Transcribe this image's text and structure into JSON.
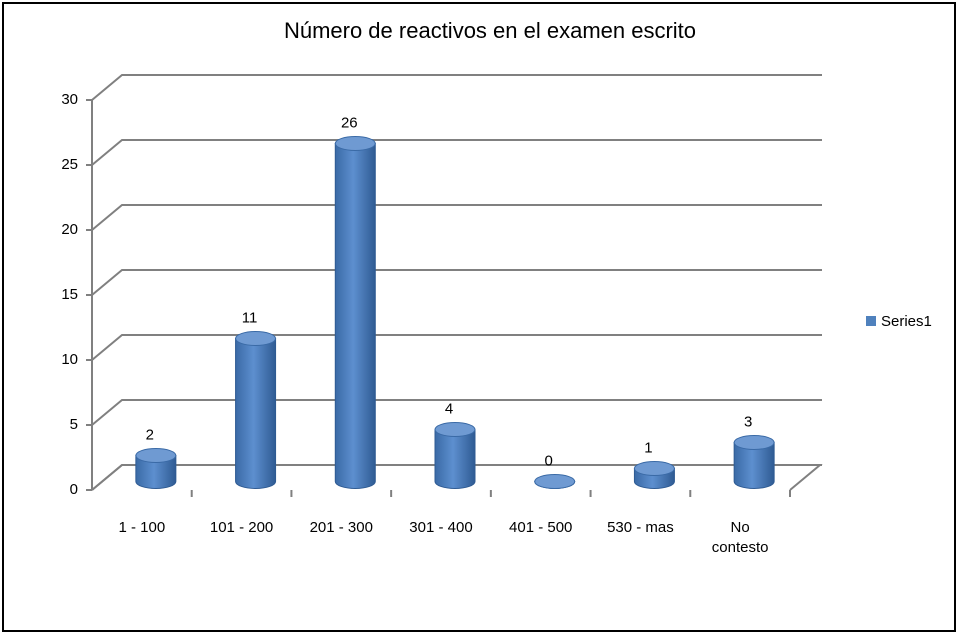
{
  "chart_data": {
    "type": "bar",
    "title": "Número de reactivos en el examen escrito",
    "categories": [
      "1 - 100",
      "101 - 200",
      "201 - 300",
      "301 - 400",
      "401 - 500",
      "530 - mas",
      "No contesto"
    ],
    "series": [
      {
        "name": "Series1",
        "color": "#4f81bd",
        "values": [
          2,
          11,
          26,
          4,
          0,
          1,
          3
        ]
      }
    ],
    "ylim": [
      0,
      30
    ],
    "yticks": [
      0,
      5,
      10,
      15,
      20,
      25,
      30
    ],
    "grid": true,
    "legend": "right"
  }
}
